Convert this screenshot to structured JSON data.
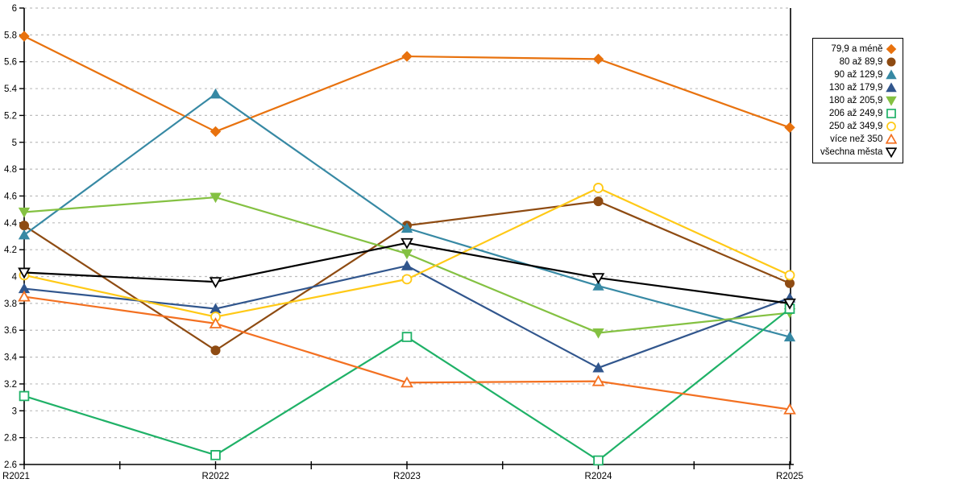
{
  "chart_data": {
    "type": "line",
    "title": "",
    "xlabel": "",
    "ylabel": "",
    "categories": [
      "R2021",
      "R2022",
      "R2023",
      "R2024",
      "R2025"
    ],
    "series": [
      {
        "name": "79,9 a méně",
        "color": "#E8720E",
        "marker": "diamond",
        "marker_style": "filled",
        "values": [
          5.79,
          5.08,
          5.64,
          5.62,
          5.11
        ]
      },
      {
        "name": "80 až 89,9",
        "color": "#8E4B12",
        "marker": "circle",
        "marker_style": "filled",
        "values": [
          4.38,
          3.45,
          4.38,
          4.56,
          3.95
        ]
      },
      {
        "name": "90 až 129,9",
        "color": "#3789A4",
        "marker": "triangle-up",
        "marker_style": "filled",
        "values": [
          4.31,
          5.36,
          4.36,
          3.93,
          3.55
        ]
      },
      {
        "name": "130 až 179,9",
        "color": "#31568D",
        "marker": "triangle-up",
        "marker_style": "filled",
        "values": [
          3.91,
          3.76,
          4.08,
          3.32,
          3.84
        ]
      },
      {
        "name": "180 až 205,9",
        "color": "#84C142",
        "marker": "triangle-down",
        "marker_style": "filled",
        "values": [
          4.48,
          4.59,
          4.17,
          3.58,
          3.73
        ]
      },
      {
        "name": "206 až 249,9",
        "color": "#1FB167",
        "marker": "square",
        "marker_style": "open",
        "values": [
          3.11,
          2.67,
          3.55,
          2.63,
          3.76
        ]
      },
      {
        "name": "250 až 349,9",
        "color": "#FFC916",
        "marker": "circle",
        "marker_style": "open",
        "values": [
          4.01,
          3.7,
          3.98,
          4.66,
          4.01
        ]
      },
      {
        "name": "více než 350",
        "color": "#F37021",
        "marker": "triangle-up",
        "marker_style": "open",
        "values": [
          3.85,
          3.65,
          3.21,
          3.22,
          3.01
        ]
      },
      {
        "name": "všechna města",
        "color": "#000000",
        "marker": "triangle-down",
        "marker_style": "open",
        "values": [
          4.03,
          3.96,
          4.25,
          3.99,
          3.8
        ]
      }
    ],
    "ylim": [
      2.6,
      6.0
    ],
    "ytick_step": 0.2,
    "grid": "horizontal-dashed",
    "gridline_color": "#BDBDBD",
    "axis_color": "#000000",
    "legend_position": "right",
    "legend_border": "#000000"
  }
}
